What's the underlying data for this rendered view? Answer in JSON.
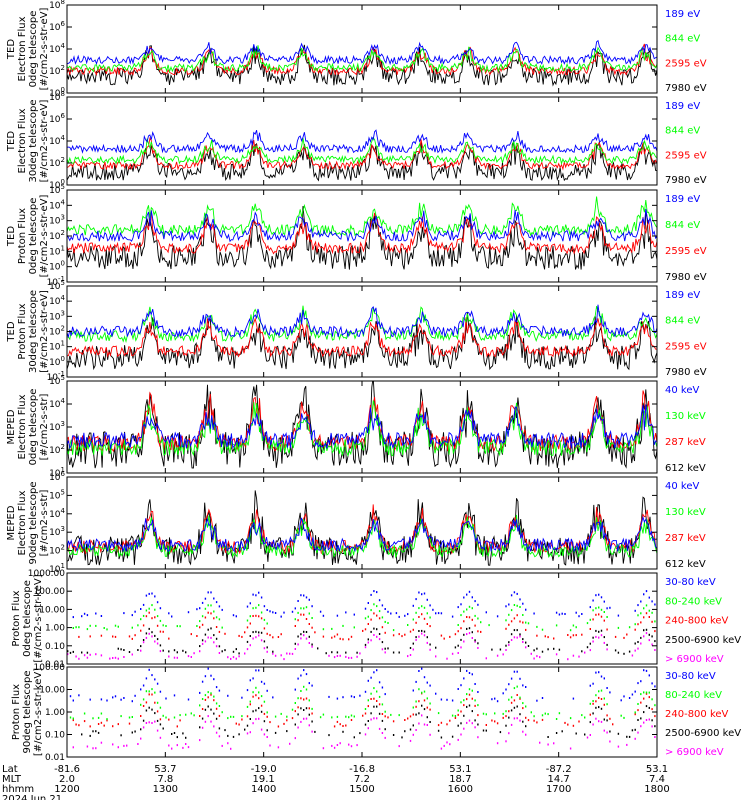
{
  "chart_data": [
    {
      "type": "line",
      "panel": 1,
      "ylabel_lines": [
        "TED",
        "Electron Flux",
        "0deg telescope",
        "[#/cm2-s-str-eV]"
      ],
      "yscale": "log",
      "ylim": [
        1,
        100000000
      ],
      "yticks": [
        "10^0",
        "10^2",
        "10^4",
        "10^6",
        "10^8"
      ],
      "series": [
        {
          "name": "7980 eV",
          "color": "#000000",
          "level": 1.5
        },
        {
          "name": "2595 eV",
          "color": "#ff0000",
          "level": 2.0
        },
        {
          "name": "844 eV",
          "color": "#00ff00",
          "level": 2.3
        },
        {
          "name": "189 eV",
          "color": "#0000ff",
          "level": 3.0
        }
      ]
    },
    {
      "type": "line",
      "panel": 2,
      "ylabel_lines": [
        "TED",
        "Electron Flux",
        "30deg telescope",
        "[#/cm2-s-str-eV]"
      ],
      "yscale": "log",
      "ylim": [
        1,
        100000000
      ],
      "yticks": [
        "10^0",
        "10^2",
        "10^4",
        "10^6",
        "10^8"
      ],
      "series": [
        {
          "name": "7980 eV",
          "color": "#000000",
          "level": 1.2
        },
        {
          "name": "2595 eV",
          "color": "#ff0000",
          "level": 1.8
        },
        {
          "name": "844 eV",
          "color": "#00ff00",
          "level": 2.3
        },
        {
          "name": "189 eV",
          "color": "#0000ff",
          "level": 3.3
        }
      ]
    },
    {
      "type": "line",
      "panel": 3,
      "ylabel_lines": [
        "TED",
        "Proton Flux",
        "0deg telescope",
        "[#/cm2-s-str-eV]"
      ],
      "yscale": "log",
      "ylim": [
        0.1,
        100000
      ],
      "yticks": [
        "10^-1",
        "10^0",
        "10^1",
        "10^2",
        "10^3",
        "10^4",
        "10^5"
      ],
      "series": [
        {
          "name": "7980 eV",
          "color": "#000000",
          "level": 0.6
        },
        {
          "name": "2595 eV",
          "color": "#ff0000",
          "level": 1.2
        },
        {
          "name": "844 eV",
          "color": "#00ff00",
          "level": 2.4
        },
        {
          "name": "189 eV",
          "color": "#0000ff",
          "level": 2.0
        }
      ]
    },
    {
      "type": "line",
      "panel": 4,
      "ylabel_lines": [
        "TED",
        "Proton Flux",
        "30deg telescope",
        "[#/cm2-s-str-eV]"
      ],
      "yscale": "log",
      "ylim": [
        0.1,
        100000
      ],
      "yticks": [
        "10^-1",
        "10^0",
        "10^1",
        "10^2",
        "10^3",
        "10^4",
        "10^5"
      ],
      "series": [
        {
          "name": "7980 eV",
          "color": "#000000",
          "level": 0.3
        },
        {
          "name": "2595 eV",
          "color": "#ff0000",
          "level": 0.7
        },
        {
          "name": "844 eV",
          "color": "#00ff00",
          "level": 1.7
        },
        {
          "name": "189 eV",
          "color": "#0000ff",
          "level": 2.0
        }
      ]
    },
    {
      "type": "line",
      "panel": 5,
      "ylabel_lines": [
        "MEPED",
        "Electron Flux",
        "0deg telescope",
        "[#/cm2-s-str]"
      ],
      "yscale": "log",
      "ylim": [
        10,
        100000
      ],
      "yticks": [
        "10^1",
        "10^2",
        "10^3",
        "10^4",
        "10^5"
      ],
      "series": [
        {
          "name": "612 keV",
          "color": "#000000",
          "level": 2.0
        },
        {
          "name": "287 keV",
          "color": "#ff0000",
          "level": 2.3
        },
        {
          "name": "130 keV",
          "color": "#00ff00",
          "level": 2.1
        },
        {
          "name": "40 keV",
          "color": "#0000ff",
          "level": 2.4
        }
      ]
    },
    {
      "type": "line",
      "panel": 6,
      "ylabel_lines": [
        "MEPED",
        "Electron Flux",
        "90deg telescope",
        "[#/cm2-s-str]"
      ],
      "yscale": "log",
      "ylim": [
        10,
        1000000
      ],
      "yticks": [
        "10^1",
        "10^2",
        "10^3",
        "10^4",
        "10^5",
        "10^6"
      ],
      "series": [
        {
          "name": "612 keV",
          "color": "#000000",
          "level": 2.0
        },
        {
          "name": "287 keV",
          "color": "#ff0000",
          "level": 2.2
        },
        {
          "name": "130 keV",
          "color": "#00ff00",
          "level": 2.0
        },
        {
          "name": "40 keV",
          "color": "#0000ff",
          "level": 2.3
        }
      ]
    },
    {
      "type": "scatter",
      "panel": 7,
      "ylabel_lines": [
        "Proton Flux",
        "0deg telescope",
        "[#/cm2-s-str-keV]"
      ],
      "yscale": "log",
      "ylim": [
        0.01,
        1000
      ],
      "yticks": [
        "0.01",
        "0.10",
        "1.00",
        "10.00",
        "100.00",
        "1000.00"
      ],
      "series": [
        {
          "name": "> 6900 keV",
          "color": "#ff00ff",
          "level": -1.6
        },
        {
          "name": "2500-6900 keV",
          "color": "#000000",
          "level": -1.3
        },
        {
          "name": "240-800 keV",
          "color": "#ff0000",
          "level": -0.5
        },
        {
          "name": "80-240 keV",
          "color": "#00ff00",
          "level": 0.0
        },
        {
          "name": "30-80 keV",
          "color": "#0000ff",
          "level": 0.7
        }
      ]
    },
    {
      "type": "scatter",
      "panel": 8,
      "ylabel_lines": [
        "Proton Flux",
        "90deg telescope",
        "[#/cm2-s-str-keV]"
      ],
      "yscale": "log",
      "ylim": [
        0.01,
        100
      ],
      "yticks": [
        "0.01",
        "0.10",
        "1.00",
        "10.00",
        "100.00"
      ],
      "series": [
        {
          "name": "> 6900 keV",
          "color": "#ff00ff",
          "level": -1.5
        },
        {
          "name": "2500-6900 keV",
          "color": "#000000",
          "level": -1.0
        },
        {
          "name": "240-800 keV",
          "color": "#ff0000",
          "level": -0.5
        },
        {
          "name": "80-240 keV",
          "color": "#00ff00",
          "level": -0.2
        },
        {
          "name": "30-80 keV",
          "color": "#0000ff",
          "level": 0.6
        }
      ]
    }
  ],
  "x_axis": {
    "row_labels": [
      "Lat",
      "MLT",
      "hhmm"
    ],
    "date": "2024 Jun 21",
    "xlim": [
      "1200",
      "1800"
    ],
    "ticks": [
      {
        "lat": "-81.6",
        "mlt": "2.0",
        "hhmm": "1200"
      },
      {
        "lat": "53.7",
        "mlt": "7.8",
        "hhmm": "1300"
      },
      {
        "lat": "-19.0",
        "mlt": "19.1",
        "hhmm": "1400"
      },
      {
        "lat": "-16.8",
        "mlt": "7.2",
        "hhmm": "1500"
      },
      {
        "lat": "53.1",
        "mlt": "18.7",
        "hhmm": "1600"
      },
      {
        "lat": "-87.2",
        "mlt": "14.7",
        "hhmm": "1700"
      },
      {
        "lat": "53.1",
        "mlt": "7.4",
        "hhmm": "1800"
      }
    ]
  }
}
